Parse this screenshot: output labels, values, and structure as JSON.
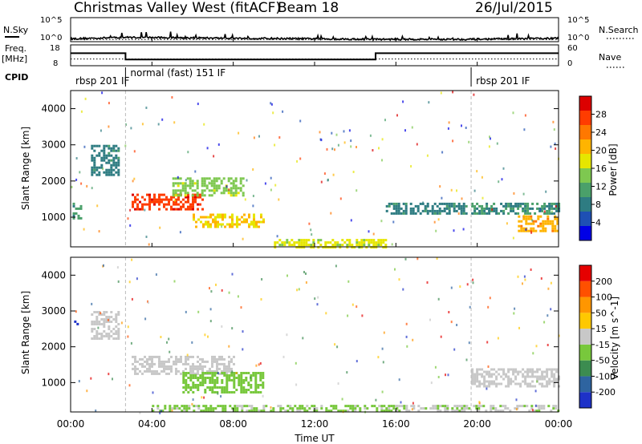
{
  "header": {
    "site": "Christmas Valley West (fitACF)",
    "beam": "Beam 18",
    "date": "26/Jul/2015"
  },
  "top_panels": {
    "nsky_label": "N.Sky",
    "nsky_ticks": [
      "10^5",
      "10^0"
    ],
    "nsearch_label": "N.Search",
    "nsearch_ticks": [
      "10^5",
      "10^0"
    ],
    "freq_label_1": "Freq.",
    "freq_label_2": "[MHz]",
    "freq_ticks": [
      "18",
      "8"
    ],
    "nave_label": "Nave",
    "nave_ticks": [
      "60",
      "0"
    ],
    "cpid_label": "CPID",
    "cpid_segments": [
      {
        "label": "rbsp 201 IF",
        "start_h": 0.0,
        "end_h": 2.7
      },
      {
        "label": "normal (fast) 151 IF",
        "start_h": 2.7,
        "end_h": 19.7
      },
      {
        "label": "rbsp 201 IF",
        "start_h": 19.7,
        "end_h": 24.0
      }
    ]
  },
  "power_panel": {
    "ylabel": "Slant Range [km]",
    "yticks": [
      "4000",
      "3000",
      "2000",
      "1000"
    ],
    "colorbar_label": "Power [dB]",
    "colorbar_ticks": [
      "28",
      "24",
      "20",
      "16",
      "12",
      "8",
      "4"
    ],
    "colors": [
      "#0000e6",
      "#1e50b4",
      "#2e7c82",
      "#4aa06a",
      "#7ec850",
      "#e6e600",
      "#ffb400",
      "#ff7800",
      "#ff3c00",
      "#dc0000"
    ]
  },
  "velocity_panel": {
    "ylabel": "Slant Range [km]",
    "yticks": [
      "4000",
      "3000",
      "2000",
      "1000"
    ],
    "colorbar_label": "Velocity [m s^-1]",
    "colorbar_ticks": [
      "200",
      "100",
      "50",
      "15",
      "-15",
      "-50",
      "-100",
      "-200"
    ],
    "colors": [
      "#1e32c8",
      "#2e64a0",
      "#3c8c50",
      "#78c83c",
      "#c8c8c8",
      "#ffc800",
      "#ff9600",
      "#ff5000",
      "#e60000"
    ]
  },
  "xaxis": {
    "ticks": [
      "00:00",
      "04:00",
      "08:00",
      "12:00",
      "16:00",
      "20:00",
      "00:00"
    ],
    "label": "Time UT"
  },
  "chart_data": [
    {
      "type": "line",
      "name": "N.Sky / N.Search",
      "x_hours": [
        0,
        2.7,
        15,
        19.7,
        24
      ],
      "y_log10": [
        0.6,
        0.9,
        0.5,
        0.5,
        0.7
      ],
      "ylim_log10": [
        0,
        5
      ]
    },
    {
      "type": "line",
      "name": "Freq / Nave",
      "x_hours": [
        0,
        2.7,
        2.7,
        15,
        15,
        24
      ],
      "freq_mhz": [
        14,
        14,
        11,
        11,
        14,
        14
      ],
      "ylim_freq": [
        8,
        18
      ],
      "nave_ylim": [
        0,
        60
      ]
    },
    {
      "type": "heatmap",
      "name": "Power",
      "x_unit": "hours UT",
      "y_unit": "km",
      "ylim": [
        180,
        4500
      ],
      "xlim": [
        0,
        24
      ],
      "zlim": [
        0,
        30
      ],
      "regions": [
        {
          "x": [
            0.1,
            0.5
          ],
          "y": [
            1000,
            1400
          ],
          "z": 10
        },
        {
          "x": [
            1.0,
            2.4
          ],
          "y": [
            2200,
            3000
          ],
          "z": 8
        },
        {
          "x": [
            3.0,
            6.5
          ],
          "y": [
            1250,
            1650
          ],
          "z": 26
        },
        {
          "x": [
            5.0,
            8.5
          ],
          "y": [
            1600,
            2100
          ],
          "z": 14
        },
        {
          "x": [
            6.0,
            9.5
          ],
          "y": [
            750,
            1100
          ],
          "z": 18
        },
        {
          "x": [
            10.0,
            15.5
          ],
          "y": [
            200,
            400
          ],
          "z": 16
        },
        {
          "x": [
            15.5,
            19.5
          ],
          "y": [
            1100,
            1400
          ],
          "z": 8
        },
        {
          "x": [
            19.7,
            24.0
          ],
          "y": [
            1100,
            1400
          ],
          "z": 9
        },
        {
          "x": [
            22.0,
            24.0
          ],
          "y": [
            650,
            1050
          ],
          "z": 20
        }
      ]
    },
    {
      "type": "heatmap",
      "name": "Velocity",
      "x_unit": "hours UT",
      "y_unit": "km",
      "ylim": [
        180,
        4500
      ],
      "xlim": [
        0,
        24
      ],
      "zlim": [
        -250,
        250
      ],
      "regions": [
        {
          "x": [
            0.05,
            0.3
          ],
          "y": [
            2600,
            2800
          ],
          "z": -220
        },
        {
          "x": [
            1.0,
            2.4
          ],
          "y": [
            2200,
            3000
          ],
          "z": 0
        },
        {
          "x": [
            3.0,
            8.0
          ],
          "y": [
            1250,
            1750
          ],
          "z": 0
        },
        {
          "x": [
            5.5,
            9.5
          ],
          "y": [
            750,
            1300
          ],
          "z": -60
        },
        {
          "x": [
            4.0,
            16.0
          ],
          "y": [
            200,
            380
          ],
          "z": -40
        },
        {
          "x": [
            16.0,
            24.0
          ],
          "y": [
            200,
            380
          ],
          "z": -20
        },
        {
          "x": [
            19.7,
            24.0
          ],
          "y": [
            900,
            1400
          ],
          "z": 0
        }
      ]
    }
  ]
}
